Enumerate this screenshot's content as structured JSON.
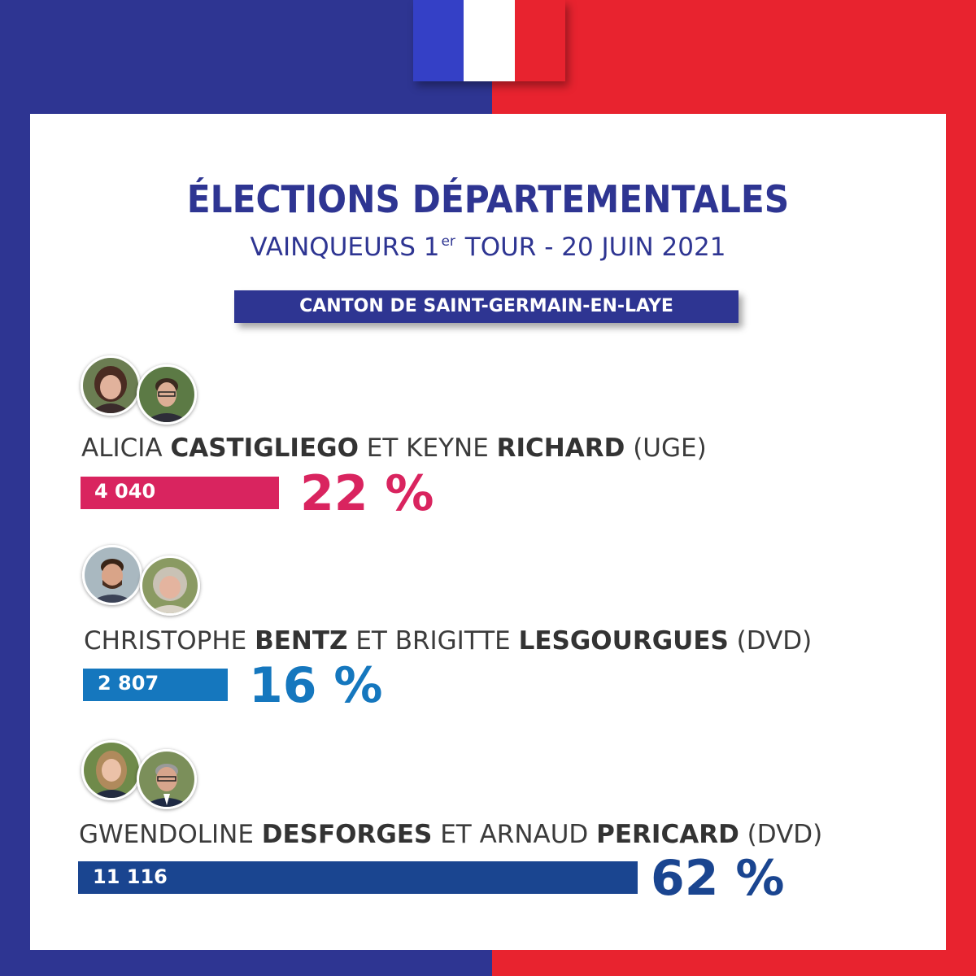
{
  "colors": {
    "navy": "#2e3592",
    "red": "#e8232f",
    "flag_blue": "#3440c6",
    "flag_white": "#ffffff",
    "flag_red": "#e8232f",
    "pink": "#d9245f",
    "mid_blue": "#1577be",
    "dark_blue": "#1a4590",
    "text": "#3b3b3b"
  },
  "header": {
    "title": "ÉLECTIONS DÉPARTEMENTALES",
    "subtitle_pre": "VAINQUEURS 1",
    "subtitle_sup": "er",
    "subtitle_post": " TOUR - 20 JUIN 2021",
    "canton": "CANTON DE SAINT-GERMAIN-EN-LAYE"
  },
  "candidates": [
    {
      "first1": "ALICIA ",
      "last1": "CASTIGLIEGO",
      "conj": " ET KEYNE ",
      "last2": "RICHARD",
      "party": " (UGE)",
      "votes": "4 040",
      "percent_label": "22 %",
      "avatars": [
        "woman-photo",
        "man-photo"
      ]
    },
    {
      "first1": "CHRISTOPHE ",
      "last1": "BENTZ",
      "conj": " ET BRIGITTE ",
      "last2": "LESGOURGUES",
      "party": " (DVD)",
      "votes": "2 807",
      "percent_label": "16 %",
      "avatars": [
        "man-photo",
        "woman-photo"
      ]
    },
    {
      "first1": "GWENDOLINE ",
      "last1": "DESFORGES",
      "conj": " ET ARNAUD ",
      "last2": "PERICARD",
      "party": " (DVD)",
      "votes": "11 116",
      "percent_label": "62 %",
      "avatars": [
        "woman-photo",
        "man-photo"
      ]
    }
  ],
  "chart_data": {
    "type": "bar",
    "title": "ÉLECTIONS DÉPARTEMENTALES",
    "subtitle": "VAINQUEURS 1er TOUR - 20 JUIN 2021",
    "categories": [
      "ALICIA CASTIGLIEGO ET KEYNE RICHARD (UGE)",
      "CHRISTOPHE BENTZ ET BRIGITTE LESGOURGUES (DVD)",
      "GWENDOLINE DESFORGES ET ARNAUD PERICARD (DVD)"
    ],
    "series": [
      {
        "name": "Voix",
        "values": [
          4040,
          2807,
          11116
        ]
      },
      {
        "name": "Pourcentage",
        "values": [
          22,
          16,
          62
        ]
      }
    ],
    "unit": "%",
    "xlim": [
      0,
      62
    ]
  }
}
